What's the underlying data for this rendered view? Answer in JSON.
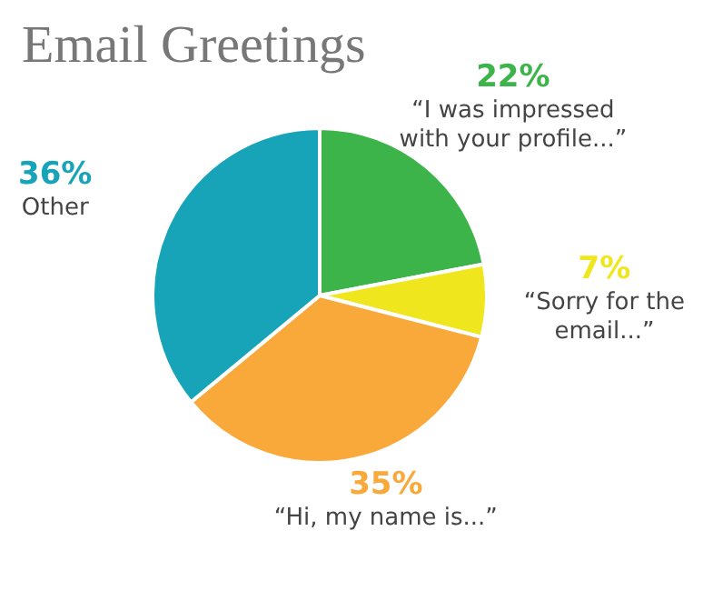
{
  "chart_data": {
    "type": "pie",
    "title": "Email Greetings",
    "categories": [
      "“I was impressed with your profile...”",
      "“Sorry for the email...”",
      "“Hi, my name is...”",
      "Other"
    ],
    "values": [
      22,
      7,
      35,
      36
    ],
    "value_labels": [
      "22%",
      "7%",
      "35%",
      "36%"
    ],
    "colors": [
      "#3cb44a",
      "#f0e61e",
      "#f9a83a",
      "#17a4b8"
    ],
    "legend": false
  }
}
